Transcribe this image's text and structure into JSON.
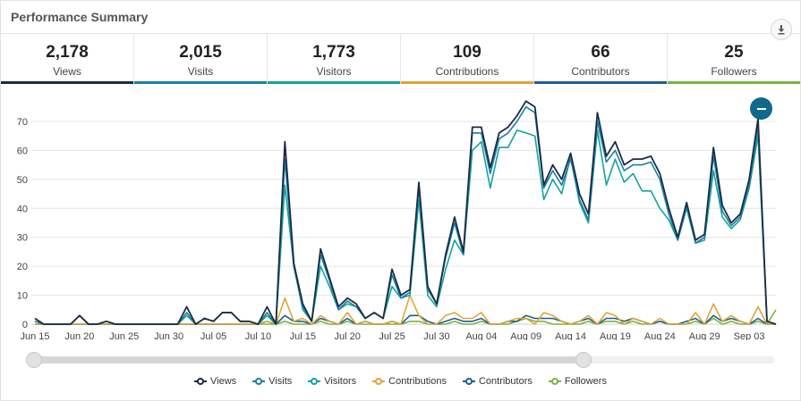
{
  "header": {
    "title": "Performance Summary",
    "download_icon": "download-icon"
  },
  "stats": [
    {
      "value": "2,178",
      "label": "Views",
      "color": "#1c2b44"
    },
    {
      "value": "2,015",
      "label": "Visits",
      "color": "#1a7fa8"
    },
    {
      "value": "1,773",
      "label": "Visitors",
      "color": "#16a39a"
    },
    {
      "value": "109",
      "label": "Contributions",
      "color": "#e0a43a"
    },
    {
      "value": "66",
      "label": "Contributors",
      "color": "#1b5f95"
    },
    {
      "value": "25",
      "label": "Followers",
      "color": "#79b43e"
    }
  ],
  "chart_data": {
    "type": "line",
    "x": [
      "Jun 15",
      "Jun 16",
      "Jun 17",
      "Jun 18",
      "Jun 19",
      "Jun 20",
      "Jun 21",
      "Jun 22",
      "Jun 23",
      "Jun 24",
      "Jun 25",
      "Jun 26",
      "Jun 27",
      "Jun 28",
      "Jun 29",
      "Jun 30",
      "Jul 01",
      "Jul 02",
      "Jul 03",
      "Jul 04",
      "Jul 05",
      "Jul 06",
      "Jul 07",
      "Jul 08",
      "Jul 09",
      "Jul 10",
      "Jul 11",
      "Jul 12",
      "Jul 13",
      "Jul 14",
      "Jul 15",
      "Jul 16",
      "Jul 17",
      "Jul 18",
      "Jul 19",
      "Jul 20",
      "Jul 21",
      "Jul 22",
      "Jul 23",
      "Jul 24",
      "Jul 25",
      "Jul 26",
      "Jul 27",
      "Jul 28",
      "Jul 29",
      "Jul 30",
      "Jul 31",
      "Aug 01",
      "Aug 02",
      "Aug 03",
      "Aug 04",
      "Aug 05",
      "Aug 06",
      "Aug 07",
      "Aug 08",
      "Aug 09",
      "Aug 10",
      "Aug 11",
      "Aug 12",
      "Aug 13",
      "Aug 14",
      "Aug 15",
      "Aug 16",
      "Aug 17",
      "Aug 18",
      "Aug 19",
      "Aug 20",
      "Aug 21",
      "Aug 22",
      "Aug 23",
      "Aug 24",
      "Aug 25",
      "Aug 26",
      "Aug 27",
      "Aug 28",
      "Aug 29",
      "Aug 30",
      "Aug 31",
      "Sep 01",
      "Sep 02",
      "Sep 03",
      "Sep 04",
      "Sep 05",
      "Sep 06"
    ],
    "x_ticks": [
      "Jun 15",
      "Jun 20",
      "Jun 25",
      "Jun 30",
      "Jul 05",
      "Jul 10",
      "Jul 15",
      "Jul 20",
      "Jul 25",
      "Jul 30",
      "Aug 04",
      "Aug 09",
      "Aug 14",
      "Aug 19",
      "Aug 24",
      "Aug 29",
      "Sep 03"
    ],
    "y_ticks": [
      0,
      10,
      20,
      30,
      40,
      50,
      60,
      70
    ],
    "ylim": [
      0,
      78
    ],
    "grid": true,
    "legend_position": "bottom",
    "series": [
      {
        "name": "Views",
        "color": "#1c2b44",
        "values": [
          2,
          0,
          0,
          0,
          0,
          3,
          0,
          0,
          1,
          0,
          0,
          0,
          0,
          0,
          0,
          0,
          0,
          6,
          0,
          2,
          1,
          4,
          4,
          1,
          1,
          0,
          6,
          0,
          63,
          21,
          7,
          1,
          26,
          16,
          6,
          9,
          7,
          2,
          4,
          2,
          19,
          10,
          12,
          49,
          13,
          7,
          24,
          37,
          25,
          68,
          68,
          54,
          66,
          68,
          72,
          77,
          75,
          48,
          55,
          50,
          59,
          45,
          38,
          73,
          58,
          63,
          55,
          57,
          57,
          58,
          52,
          40,
          30,
          42,
          29,
          31,
          61,
          41,
          35,
          38,
          50,
          71,
          1,
          0
        ],
        "dotted": true
      },
      {
        "name": "Visits",
        "color": "#1a7fa8",
        "values": [
          1,
          0,
          0,
          0,
          0,
          3,
          0,
          0,
          1,
          0,
          0,
          0,
          0,
          0,
          0,
          0,
          0,
          4,
          0,
          2,
          1,
          4,
          4,
          1,
          1,
          0,
          4,
          0,
          57,
          20,
          6,
          1,
          24,
          15,
          5,
          8,
          6,
          2,
          4,
          2,
          17,
          9,
          11,
          47,
          12,
          7,
          23,
          35,
          24,
          66,
          66,
          52,
          64,
          66,
          70,
          75,
          73,
          47,
          53,
          48,
          57,
          43,
          36,
          70,
          56,
          60,
          53,
          55,
          55,
          56,
          50,
          38,
          29,
          41,
          28,
          30,
          58,
          39,
          34,
          37,
          48,
          68,
          1,
          0
        ]
      },
      {
        "name": "Visitors",
        "color": "#16a39a",
        "values": [
          1,
          0,
          0,
          0,
          0,
          3,
          0,
          0,
          1,
          0,
          0,
          0,
          0,
          0,
          0,
          0,
          0,
          3,
          0,
          2,
          1,
          4,
          4,
          1,
          1,
          0,
          3,
          0,
          48,
          20,
          5,
          1,
          20,
          13,
          5,
          7,
          6,
          2,
          4,
          2,
          13,
          9,
          10,
          43,
          10,
          6,
          19,
          29,
          24,
          60,
          63,
          47,
          61,
          61,
          67,
          66,
          65,
          43,
          50,
          45,
          58,
          42,
          35,
          67,
          48,
          57,
          49,
          52,
          46,
          46,
          40,
          36,
          29,
          40,
          28,
          29,
          53,
          37,
          33,
          36,
          47,
          65,
          1,
          0
        ]
      },
      {
        "name": "Contributions",
        "color": "#e0a43a",
        "values": [
          0,
          0,
          0,
          0,
          0,
          0,
          0,
          0,
          0,
          0,
          0,
          0,
          0,
          0,
          0,
          0,
          0,
          0,
          0,
          0,
          0,
          0,
          0,
          0,
          0,
          0,
          1,
          0,
          9,
          1,
          2,
          0,
          3,
          1,
          0,
          4,
          0,
          1,
          0,
          0,
          1,
          0,
          10,
          3,
          0,
          0,
          3,
          4,
          2,
          2,
          4,
          0,
          0,
          1,
          2,
          2,
          0,
          4,
          3,
          1,
          0,
          1,
          3,
          0,
          4,
          3,
          0,
          2,
          1,
          0,
          2,
          0,
          0,
          0,
          4,
          0,
          7,
          1,
          3,
          1,
          0,
          6,
          0,
          0
        ]
      },
      {
        "name": "Contributors",
        "color": "#1b5f95",
        "values": [
          0,
          0,
          0,
          0,
          0,
          0,
          0,
          0,
          0,
          0,
          0,
          0,
          0,
          0,
          0,
          0,
          0,
          0,
          0,
          0,
          0,
          0,
          0,
          0,
          0,
          0,
          1,
          0,
          3,
          1,
          1,
          0,
          2,
          1,
          0,
          2,
          0,
          1,
          0,
          0,
          1,
          0,
          3,
          3,
          1,
          0,
          1,
          2,
          1,
          1,
          2,
          0,
          0,
          1,
          1,
          3,
          2,
          2,
          2,
          1,
          0,
          1,
          2,
          0,
          2,
          2,
          1,
          2,
          1,
          0,
          1,
          0,
          0,
          1,
          2,
          0,
          3,
          1,
          2,
          1,
          0,
          2,
          0,
          0
        ]
      },
      {
        "name": "Followers",
        "color": "#79b43e",
        "values": [
          0,
          0,
          0,
          0,
          0,
          0,
          0,
          0,
          0,
          0,
          0,
          0,
          0,
          0,
          0,
          0,
          0,
          0,
          0,
          0,
          0,
          0,
          0,
          0,
          0,
          0,
          0,
          0,
          1,
          0,
          0,
          0,
          1,
          0,
          0,
          1,
          0,
          0,
          0,
          0,
          0,
          0,
          1,
          1,
          0,
          0,
          0,
          1,
          0,
          0,
          1,
          0,
          0,
          0,
          1,
          2,
          1,
          1,
          0,
          0,
          0,
          0,
          1,
          0,
          1,
          1,
          0,
          1,
          0,
          0,
          1,
          0,
          0,
          0,
          1,
          0,
          2,
          0,
          1,
          0,
          0,
          1,
          0,
          5
        ]
      }
    ]
  },
  "controls": {
    "collapse_icon": "minus-icon"
  }
}
